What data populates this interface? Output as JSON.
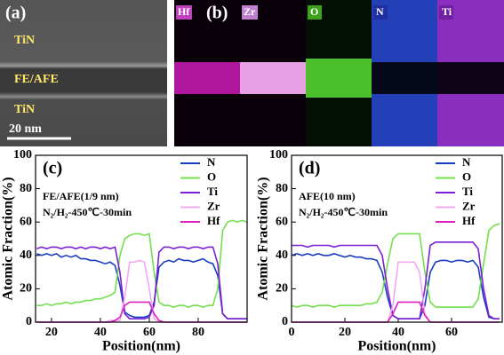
{
  "panels": {
    "a": {
      "label": "(a)",
      "texts": [
        "TiN",
        "FE/AFE",
        "TiN"
      ],
      "scale_bar": "20 nm"
    },
    "b": {
      "label": "(b)",
      "maps": [
        "Hf",
        "Zr",
        "O",
        "N",
        "Ti"
      ]
    }
  },
  "chart_data": [
    {
      "type": "line",
      "panel_label": "(c)",
      "annotations": [
        "FE/AFE(1/9 nm)",
        "N₂/H₂-450℃-30min"
      ],
      "x_label": "Position(nm)",
      "y_label": "Atomic Fraction(%)",
      "xlim": [
        13.5,
        100
      ],
      "xticks": [
        20,
        40,
        60,
        80
      ],
      "ylim": [
        0,
        100
      ],
      "yticks": [
        0,
        20,
        40,
        60,
        80,
        100
      ],
      "legend": "upper right",
      "x": [
        14,
        16,
        18,
        20,
        22,
        24,
        26,
        28,
        30,
        32,
        34,
        36,
        38,
        40,
        42,
        44,
        46,
        48,
        50,
        52,
        54,
        56,
        58,
        60,
        62,
        64,
        66,
        68,
        70,
        72,
        74,
        76,
        78,
        80,
        82,
        84,
        86,
        88,
        90,
        92,
        94,
        96,
        98,
        100
      ],
      "series": [
        {
          "name": "N",
          "color": "#1a3cc0",
          "values": [
            41,
            40,
            41,
            40,
            41,
            39,
            40,
            39,
            40,
            38,
            38,
            37,
            37,
            36,
            35,
            36,
            34,
            22,
            6,
            4,
            3,
            3,
            3,
            4,
            12,
            33,
            36,
            37,
            36,
            38,
            37,
            37,
            36,
            37,
            38,
            36,
            35,
            28,
            5,
            2,
            2,
            2,
            2,
            2
          ]
        },
        {
          "name": "O",
          "color": "#72e04c",
          "values": [
            10,
            10,
            11,
            10,
            11,
            11,
            12,
            11,
            12,
            12,
            13,
            13,
            14,
            14,
            15,
            16,
            18,
            40,
            50,
            52,
            53,
            53,
            52,
            53,
            30,
            12,
            10,
            10,
            9,
            10,
            10,
            9,
            10,
            10,
            9,
            10,
            10,
            20,
            55,
            60,
            61,
            60,
            61,
            60
          ]
        },
        {
          "name": "Ti",
          "color": "#7a1fd6",
          "values": [
            44,
            45,
            44,
            45,
            45,
            44,
            45,
            45,
            44,
            45,
            44,
            45,
            45,
            44,
            45,
            44,
            45,
            30,
            5,
            2,
            2,
            2,
            2,
            3,
            10,
            42,
            45,
            45,
            44,
            45,
            45,
            44,
            45,
            45,
            44,
            45,
            45,
            35,
            5,
            2,
            2,
            2,
            2,
            2
          ]
        },
        {
          "name": "Zr",
          "color": "#f2a8f0",
          "values": [
            0,
            0,
            0,
            0,
            0,
            0,
            0,
            0,
            0,
            0,
            0,
            0,
            0,
            0,
            0,
            1,
            1,
            1,
            15,
            36,
            36,
            37,
            36,
            20,
            2,
            0,
            0,
            0,
            0,
            0,
            0,
            0,
            0,
            0,
            0,
            0,
            0,
            0,
            0,
            0,
            0,
            0,
            0,
            0
          ]
        },
        {
          "name": "Hf",
          "color": "#e020c0",
          "values": [
            0,
            0,
            0,
            0,
            0,
            0,
            0,
            0,
            0,
            0,
            0,
            0,
            0,
            0,
            0,
            0,
            1,
            3,
            10,
            12,
            12,
            12,
            12,
            12,
            5,
            1,
            0,
            0,
            0,
            0,
            0,
            0,
            0,
            0,
            0,
            0,
            0,
            0,
            0,
            0,
            0,
            0,
            0,
            0
          ]
        }
      ]
    },
    {
      "type": "line",
      "panel_label": "(d)",
      "annotations": [
        "AFE(10 nm)",
        "N₂/H₂-450℃-30min"
      ],
      "x_label": "Position(nm)",
      "y_label": "Atomic Fraction(%)",
      "xlim": [
        0,
        79
      ],
      "xticks": [
        0,
        20,
        40,
        60
      ],
      "ylim": [
        0,
        100
      ],
      "yticks": [
        0,
        20,
        40,
        60,
        80,
        100
      ],
      "legend": "upper right",
      "x": [
        0,
        2,
        4,
        6,
        8,
        10,
        12,
        14,
        16,
        18,
        20,
        22,
        24,
        26,
        28,
        30,
        32,
        34,
        36,
        38,
        40,
        42,
        44,
        46,
        48,
        50,
        52,
        54,
        56,
        58,
        60,
        62,
        64,
        66,
        68,
        70,
        72,
        74,
        76,
        78
      ],
      "series": [
        {
          "name": "N",
          "color": "#1a3cc0",
          "values": [
            40,
            41,
            40,
            41,
            40,
            41,
            40,
            40,
            41,
            40,
            39,
            40,
            39,
            39,
            38,
            38,
            37,
            30,
            15,
            4,
            2,
            2,
            2,
            2,
            2,
            10,
            30,
            36,
            37,
            37,
            36,
            37,
            37,
            36,
            37,
            33,
            15,
            3,
            2,
            2
          ]
        },
        {
          "name": "O",
          "color": "#72e04c",
          "values": [
            10,
            9,
            10,
            10,
            9,
            10,
            10,
            10,
            9,
            10,
            10,
            10,
            10,
            10,
            11,
            11,
            12,
            18,
            35,
            50,
            53,
            53,
            53,
            53,
            53,
            30,
            12,
            9,
            9,
            9,
            9,
            9,
            9,
            9,
            9,
            14,
            35,
            55,
            58,
            59
          ]
        },
        {
          "name": "Ti",
          "color": "#7a1fd6",
          "values": [
            46,
            46,
            46,
            45,
            46,
            46,
            46,
            46,
            45,
            46,
            46,
            46,
            46,
            46,
            46,
            46,
            46,
            40,
            20,
            4,
            2,
            2,
            2,
            2,
            2,
            20,
            46,
            48,
            48,
            48,
            48,
            48,
            48,
            48,
            48,
            44,
            20,
            4,
            2,
            2
          ]
        },
        {
          "name": "Zr",
          "color": "#f2a8f0",
          "values": [
            0,
            0,
            0,
            0,
            0,
            0,
            0,
            0,
            0,
            0,
            0,
            0,
            0,
            0,
            0,
            0,
            0,
            0,
            0,
            10,
            36,
            36,
            36,
            36,
            30,
            5,
            0,
            0,
            0,
            0,
            0,
            0,
            0,
            0,
            0,
            0,
            0,
            0,
            0,
            0
          ]
        },
        {
          "name": "Hf",
          "color": "#e020c0",
          "values": [
            0,
            0,
            0,
            0,
            0,
            0,
            0,
            0,
            0,
            0,
            0,
            0,
            0,
            0,
            0,
            0,
            0,
            0,
            0,
            5,
            12,
            12,
            12,
            12,
            12,
            4,
            0,
            0,
            0,
            0,
            0,
            0,
            0,
            0,
            0,
            0,
            0,
            0,
            0,
            0
          ]
        }
      ]
    }
  ]
}
